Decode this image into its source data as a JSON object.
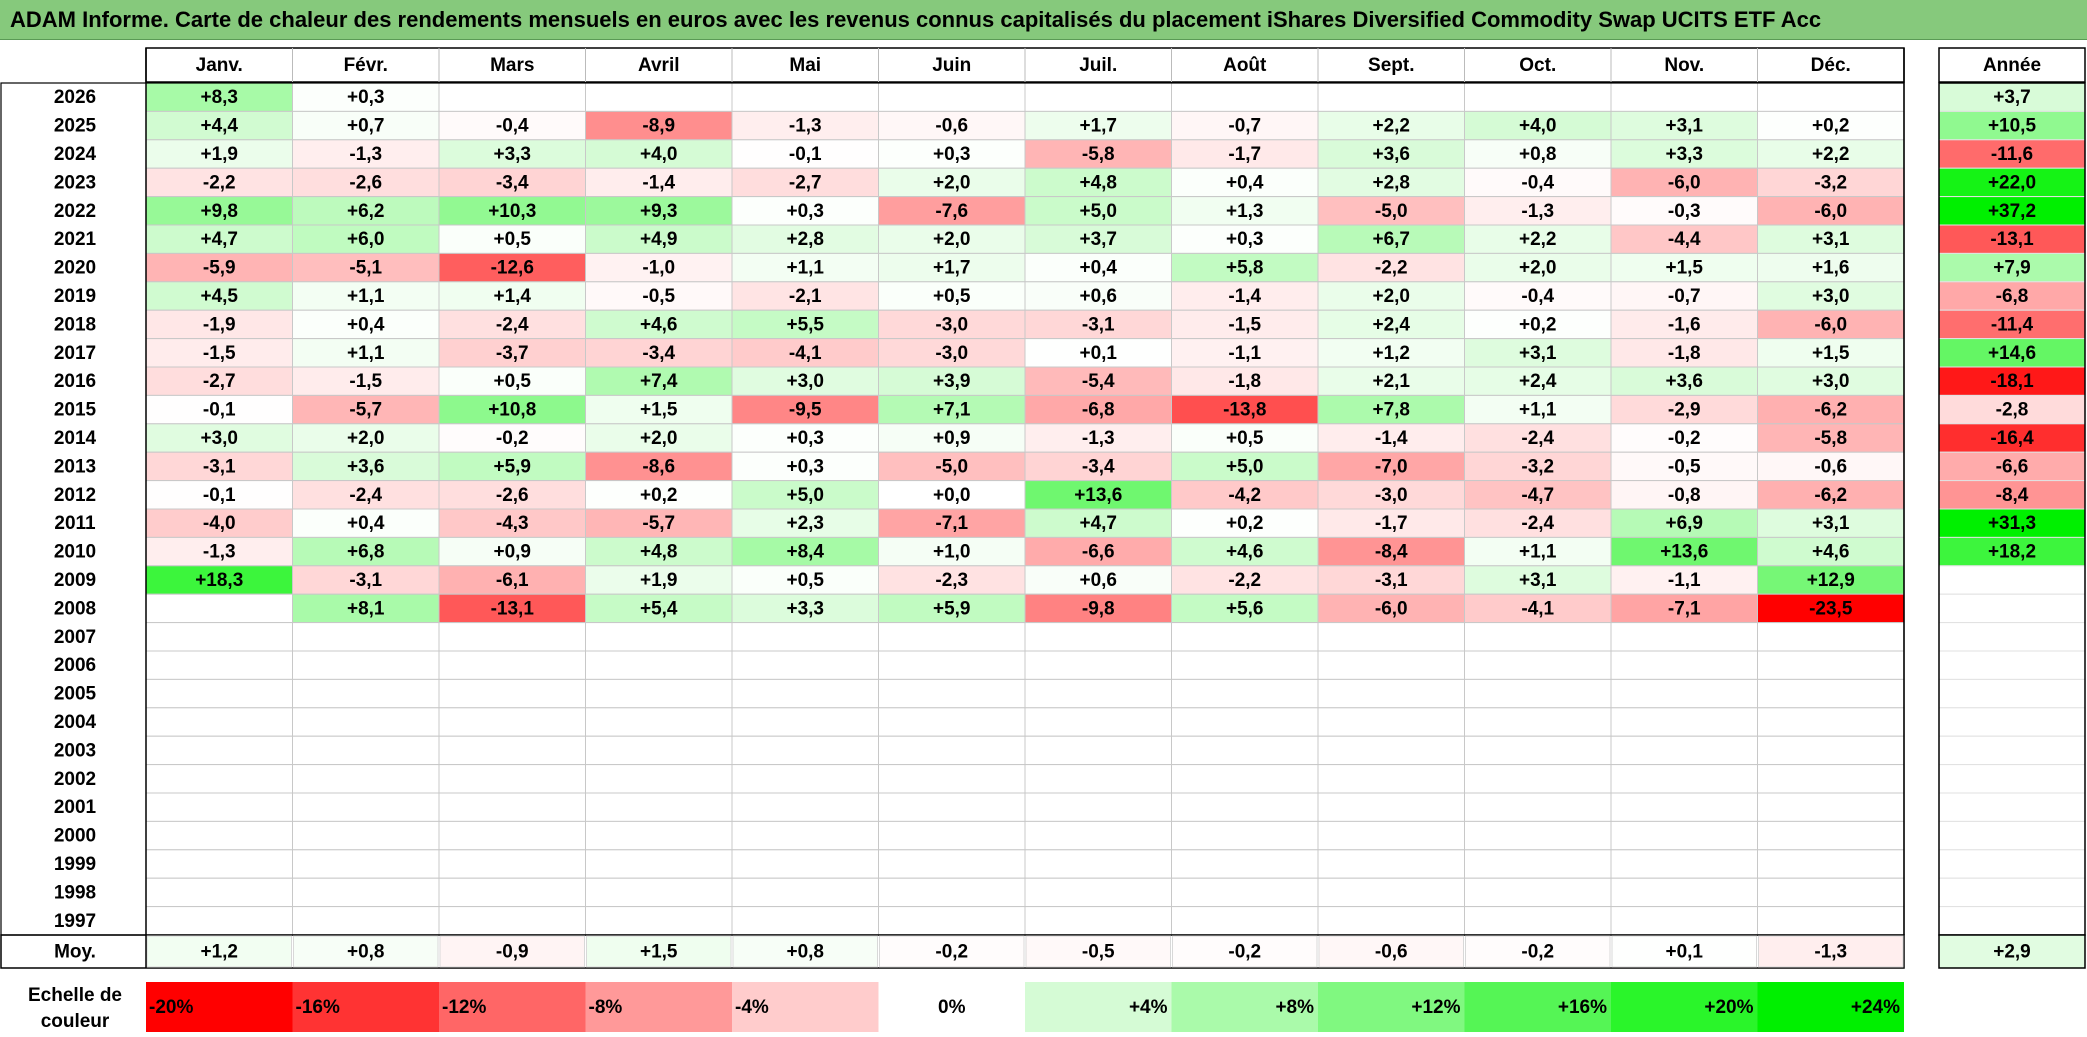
{
  "title": "ADAM Informe. Carte de chaleur des rendements mensuels en euros avec les revenus connus capitalisés du placement iShares Diversified Commodity Swap UCITS ETF Acc",
  "chart_data": {
    "type": "heatmap",
    "months": [
      "Janv.",
      "Févr.",
      "Mars",
      "Avril",
      "Mai",
      "Juin",
      "Juil.",
      "Août",
      "Sept.",
      "Oct.",
      "Nov.",
      "Déc."
    ],
    "year_header": "Année",
    "years": [
      2026,
      2025,
      2024,
      2023,
      2022,
      2021,
      2020,
      2019,
      2018,
      2017,
      2016,
      2015,
      2014,
      2013,
      2012,
      2011,
      2010,
      2009,
      2008,
      2007,
      2006,
      2005,
      2004,
      2003,
      2002,
      2001,
      2000,
      1999,
      1998,
      1997
    ],
    "values": [
      [
        8.3,
        0.3,
        null,
        null,
        null,
        null,
        null,
        null,
        null,
        null,
        null,
        null
      ],
      [
        4.4,
        0.7,
        -0.4,
        -8.9,
        -1.3,
        -0.6,
        1.7,
        -0.7,
        2.2,
        4.0,
        3.1,
        0.2
      ],
      [
        1.9,
        -1.3,
        3.3,
        4.0,
        -0.1,
        0.3,
        -5.8,
        -1.7,
        3.6,
        0.8,
        3.3,
        2.2
      ],
      [
        -2.2,
        -2.6,
        -3.4,
        -1.4,
        -2.7,
        2.0,
        4.8,
        0.4,
        2.8,
        -0.4,
        -6.0,
        -3.2
      ],
      [
        9.8,
        6.2,
        10.3,
        9.3,
        0.3,
        -7.6,
        5.0,
        1.3,
        -5.0,
        -1.3,
        -0.3,
        -6.0
      ],
      [
        4.7,
        6.0,
        0.5,
        4.9,
        2.8,
        2.0,
        3.7,
        0.3,
        6.7,
        2.2,
        -4.4,
        3.1
      ],
      [
        -5.9,
        -5.1,
        -12.6,
        -1.0,
        1.1,
        1.7,
        0.4,
        5.8,
        -2.2,
        2.0,
        1.5,
        1.6
      ],
      [
        4.5,
        1.1,
        1.4,
        -0.5,
        -2.1,
        0.5,
        0.6,
        -1.4,
        2.0,
        -0.4,
        -0.7,
        3.0
      ],
      [
        -1.9,
        0.4,
        -2.4,
        4.6,
        5.5,
        -3.0,
        -3.1,
        -1.5,
        2.4,
        0.2,
        -1.6,
        -6.0
      ],
      [
        -1.5,
        1.1,
        -3.7,
        -3.4,
        -4.1,
        -3.0,
        0.1,
        -1.1,
        1.2,
        3.1,
        -1.8,
        1.5
      ],
      [
        -2.7,
        -1.5,
        0.5,
        7.4,
        3.0,
        3.9,
        -5.4,
        -1.8,
        2.1,
        2.4,
        3.6,
        3.0
      ],
      [
        -0.1,
        -5.7,
        10.8,
        1.5,
        -9.5,
        7.1,
        -6.8,
        -13.8,
        7.8,
        1.1,
        -2.9,
        -6.2
      ],
      [
        3.0,
        2.0,
        -0.2,
        2.0,
        0.3,
        0.9,
        -1.3,
        0.5,
        -1.4,
        -2.4,
        -0.2,
        -5.8
      ],
      [
        -3.1,
        3.6,
        5.9,
        -8.6,
        0.3,
        -5.0,
        -3.4,
        5.0,
        -7.0,
        -3.2,
        -0.5,
        -0.6
      ],
      [
        -0.1,
        -2.4,
        -2.6,
        0.2,
        5.0,
        0.0,
        13.6,
        -4.2,
        -3.0,
        -4.7,
        -0.8,
        -6.2
      ],
      [
        -4.0,
        0.4,
        -4.3,
        -5.7,
        2.3,
        -7.1,
        4.7,
        0.2,
        -1.7,
        -2.4,
        6.9,
        3.1
      ],
      [
        -1.3,
        6.8,
        0.9,
        4.8,
        8.4,
        1.0,
        -6.6,
        4.6,
        -8.4,
        1.1,
        13.6,
        4.6
      ],
      [
        18.3,
        -3.1,
        -6.1,
        1.9,
        0.5,
        -2.3,
        0.6,
        -2.2,
        -3.1,
        3.1,
        -1.1,
        12.9
      ],
      [
        null,
        8.1,
        -13.1,
        5.4,
        3.3,
        5.9,
        -9.8,
        5.6,
        -6.0,
        -4.1,
        -7.1,
        -23.5
      ],
      [
        null,
        null,
        null,
        null,
        null,
        null,
        null,
        null,
        null,
        null,
        null,
        null
      ],
      [
        null,
        null,
        null,
        null,
        null,
        null,
        null,
        null,
        null,
        null,
        null,
        null
      ],
      [
        null,
        null,
        null,
        null,
        null,
        null,
        null,
        null,
        null,
        null,
        null,
        null
      ],
      [
        null,
        null,
        null,
        null,
        null,
        null,
        null,
        null,
        null,
        null,
        null,
        null
      ],
      [
        null,
        null,
        null,
        null,
        null,
        null,
        null,
        null,
        null,
        null,
        null,
        null
      ],
      [
        null,
        null,
        null,
        null,
        null,
        null,
        null,
        null,
        null,
        null,
        null,
        null
      ],
      [
        null,
        null,
        null,
        null,
        null,
        null,
        null,
        null,
        null,
        null,
        null,
        null
      ],
      [
        null,
        null,
        null,
        null,
        null,
        null,
        null,
        null,
        null,
        null,
        null,
        null
      ],
      [
        null,
        null,
        null,
        null,
        null,
        null,
        null,
        null,
        null,
        null,
        null,
        null
      ],
      [
        null,
        null,
        null,
        null,
        null,
        null,
        null,
        null,
        null,
        null,
        null,
        null
      ],
      [
        null,
        null,
        null,
        null,
        null,
        null,
        null,
        null,
        null,
        null,
        null,
        null
      ]
    ],
    "annual": [
      3.7,
      10.5,
      -11.6,
      22.0,
      37.2,
      -13.1,
      7.9,
      -6.8,
      -11.4,
      14.6,
      -18.1,
      -2.8,
      -16.4,
      -6.6,
      -8.4,
      31.3,
      18.2,
      null,
      null,
      null,
      null,
      null,
      null,
      null,
      null,
      null,
      null,
      null,
      null,
      null
    ],
    "average_label": "Moy.",
    "average": [
      1.2,
      0.8,
      -0.9,
      1.5,
      0.8,
      -0.2,
      -0.5,
      -0.2,
      -0.6,
      -0.2,
      0.1,
      -1.3
    ],
    "average_annual": 2.9,
    "scale_label": [
      "Echelle de",
      "couleur"
    ],
    "scale": [
      {
        "label": "-20%",
        "value": -20,
        "color": "#ff0000"
      },
      {
        "label": "-16%",
        "value": -16,
        "color": "#ff3333"
      },
      {
        "label": "-12%",
        "value": -12,
        "color": "#ff6666"
      },
      {
        "label": "-8%",
        "value": -8,
        "color": "#ff9999"
      },
      {
        "label": "-4%",
        "value": -4,
        "color": "#ffcccc"
      },
      {
        "label": "0%",
        "value": 0,
        "color": "#ffffff"
      },
      {
        "label": "+4%",
        "value": 4,
        "color": "#d5fbd5"
      },
      {
        "label": "+8%",
        "value": 8,
        "color": "#aafaaa"
      },
      {
        "label": "+12%",
        "value": 12,
        "color": "#80f880"
      },
      {
        "label": "+16%",
        "value": 16,
        "color": "#55f555"
      },
      {
        "label": "+20%",
        "value": 20,
        "color": "#2af52a"
      },
      {
        "label": "+24%",
        "value": 24,
        "color": "#00f000"
      }
    ]
  }
}
